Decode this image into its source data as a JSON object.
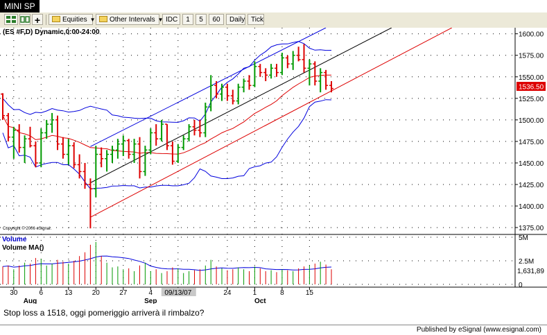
{
  "window": {
    "title": "MINI SP"
  },
  "toolbar": {
    "equities": "Equities",
    "other_intervals": "Other Intervals",
    "idc": "IDC",
    "one": "1",
    "five": "5",
    "sixty": "60",
    "daily": "Daily",
    "tick": "Tick"
  },
  "chart_header": "(ES #F,D) Dynamic,0:00-24:00",
  "copyright": "Copyright © 2006 eSignal.",
  "last_price": "1536.50",
  "volume_label": "Volume",
  "volume_ma_label": "Volume MA()",
  "volume_last": "1,631,89",
  "note": "Stop loss a 1518, oggi pomeriggio arriverà il rimbalzo?",
  "footer": "Published by eSignal (www.esignal.com)",
  "colors": {
    "up": "#009900",
    "down": "#dd0000",
    "band": "#0000dd",
    "ma": "#dd0000",
    "trend": "#000000",
    "price_tag": "#dd0000"
  },
  "chart_data": {
    "type": "ohlc",
    "price_axis": [
      "1600.00",
      "1575.00",
      "1550.00",
      "1525.00",
      "1500.00",
      "1475.00",
      "1450.00",
      "1425.00",
      "1400.00",
      "1375.00"
    ],
    "volume_axis": [
      "5M",
      "2.5M",
      "0"
    ],
    "x_ticks": [
      "30",
      "6",
      "13",
      "20",
      "27",
      "4",
      "09/13/07",
      "24",
      "1",
      "8",
      "15"
    ],
    "months": [
      "Aug",
      "Sep",
      "Oct"
    ],
    "ylim": [
      1367,
      1607
    ],
    "bars": [
      {
        "o": 1530,
        "h": 1531,
        "l": 1500,
        "c": 1505,
        "v": 1.9
      },
      {
        "o": 1505,
        "h": 1508,
        "l": 1475,
        "c": 1480,
        "v": 2.0
      },
      {
        "o": 1480,
        "h": 1492,
        "l": 1455,
        "c": 1488,
        "v": 1.6
      },
      {
        "o": 1488,
        "h": 1495,
        "l": 1462,
        "c": 1468,
        "v": 2.0
      },
      {
        "o": 1468,
        "h": 1482,
        "l": 1450,
        "c": 1478,
        "v": 2.3
      },
      {
        "o": 1478,
        "h": 1492,
        "l": 1468,
        "c": 1470,
        "v": 2.2
      },
      {
        "o": 1470,
        "h": 1475,
        "l": 1445,
        "c": 1450,
        "v": 2.8
      },
      {
        "o": 1450,
        "h": 1490,
        "l": 1445,
        "c": 1485,
        "v": 2.7
      },
      {
        "o": 1485,
        "h": 1500,
        "l": 1478,
        "c": 1495,
        "v": 2.0
      },
      {
        "o": 1495,
        "h": 1508,
        "l": 1485,
        "c": 1500,
        "v": 2.2
      },
      {
        "o": 1500,
        "h": 1505,
        "l": 1465,
        "c": 1472,
        "v": 2.6
      },
      {
        "o": 1472,
        "h": 1480,
        "l": 1455,
        "c": 1460,
        "v": 2.4
      },
      {
        "o": 1460,
        "h": 1478,
        "l": 1448,
        "c": 1470,
        "v": 2.2
      },
      {
        "o": 1470,
        "h": 1474,
        "l": 1444,
        "c": 1448,
        "v": 2.5
      },
      {
        "o": 1448,
        "h": 1460,
        "l": 1432,
        "c": 1440,
        "v": 3.0
      },
      {
        "o": 1440,
        "h": 1450,
        "l": 1420,
        "c": 1425,
        "v": 3.4
      },
      {
        "o": 1425,
        "h": 1432,
        "l": 1374,
        "c": 1420,
        "v": 4.2
      },
      {
        "o": 1420,
        "h": 1470,
        "l": 1410,
        "c": 1460,
        "v": 4.5
      },
      {
        "o": 1460,
        "h": 1468,
        "l": 1445,
        "c": 1455,
        "v": 3.0
      },
      {
        "o": 1455,
        "h": 1465,
        "l": 1440,
        "c": 1460,
        "v": 2.3
      },
      {
        "o": 1460,
        "h": 1470,
        "l": 1450,
        "c": 1465,
        "v": 1.8
      },
      {
        "o": 1465,
        "h": 1478,
        "l": 1455,
        "c": 1472,
        "v": 1.9
      },
      {
        "o": 1472,
        "h": 1482,
        "l": 1458,
        "c": 1476,
        "v": 1.6
      },
      {
        "o": 1476,
        "h": 1478,
        "l": 1455,
        "c": 1460,
        "v": 1.7
      },
      {
        "o": 1460,
        "h": 1478,
        "l": 1450,
        "c": 1472,
        "v": 1.4
      },
      {
        "o": 1472,
        "h": 1480,
        "l": 1432,
        "c": 1440,
        "v": 2.0
      },
      {
        "o": 1440,
        "h": 1470,
        "l": 1435,
        "c": 1465,
        "v": 2.3
      },
      {
        "o": 1465,
        "h": 1490,
        "l": 1460,
        "c": 1485,
        "v": 1.4
      },
      {
        "o": 1485,
        "h": 1495,
        "l": 1470,
        "c": 1478,
        "v": 1.6
      },
      {
        "o": 1478,
        "h": 1500,
        "l": 1475,
        "c": 1495,
        "v": 1.2
      },
      {
        "o": 1495,
        "h": 1495,
        "l": 1465,
        "c": 1470,
        "v": 1.4
      },
      {
        "o": 1470,
        "h": 1475,
        "l": 1448,
        "c": 1452,
        "v": 1.8
      },
      {
        "o": 1452,
        "h": 1472,
        "l": 1450,
        "c": 1468,
        "v": 1.7
      },
      {
        "o": 1468,
        "h": 1482,
        "l": 1465,
        "c": 1478,
        "v": 1.2
      },
      {
        "o": 1478,
        "h": 1495,
        "l": 1475,
        "c": 1492,
        "v": 1.4
      },
      {
        "o": 1492,
        "h": 1500,
        "l": 1482,
        "c": 1488,
        "v": 1.5
      },
      {
        "o": 1488,
        "h": 1500,
        "l": 1480,
        "c": 1485,
        "v": 1.6
      },
      {
        "o": 1485,
        "h": 1520,
        "l": 1480,
        "c": 1515,
        "v": 2.0
      },
      {
        "o": 1515,
        "h": 1552,
        "l": 1510,
        "c": 1540,
        "v": 2.6
      },
      {
        "o": 1540,
        "h": 1545,
        "l": 1525,
        "c": 1530,
        "v": 1.9
      },
      {
        "o": 1530,
        "h": 1542,
        "l": 1522,
        "c": 1538,
        "v": 1.7
      },
      {
        "o": 1538,
        "h": 1542,
        "l": 1522,
        "c": 1528,
        "v": 1.5
      },
      {
        "o": 1528,
        "h": 1535,
        "l": 1518,
        "c": 1522,
        "v": 1.6
      },
      {
        "o": 1522,
        "h": 1542,
        "l": 1518,
        "c": 1538,
        "v": 1.8
      },
      {
        "o": 1538,
        "h": 1548,
        "l": 1532,
        "c": 1545,
        "v": 1.6
      },
      {
        "o": 1545,
        "h": 1552,
        "l": 1535,
        "c": 1540,
        "v": 1.4
      },
      {
        "o": 1540,
        "h": 1568,
        "l": 1538,
        "c": 1562,
        "v": 1.9
      },
      {
        "o": 1562,
        "h": 1565,
        "l": 1550,
        "c": 1555,
        "v": 1.7
      },
      {
        "o": 1555,
        "h": 1560,
        "l": 1545,
        "c": 1552,
        "v": 1.4
      },
      {
        "o": 1552,
        "h": 1565,
        "l": 1548,
        "c": 1560,
        "v": 1.5
      },
      {
        "o": 1560,
        "h": 1565,
        "l": 1550,
        "c": 1555,
        "v": 1.3
      },
      {
        "o": 1555,
        "h": 1578,
        "l": 1552,
        "c": 1572,
        "v": 1.6
      },
      {
        "o": 1572,
        "h": 1575,
        "l": 1560,
        "c": 1565,
        "v": 1.5
      },
      {
        "o": 1565,
        "h": 1580,
        "l": 1558,
        "c": 1575,
        "v": 1.4
      },
      {
        "o": 1575,
        "h": 1585,
        "l": 1568,
        "c": 1570,
        "v": 1.7
      },
      {
        "o": 1570,
        "h": 1588,
        "l": 1555,
        "c": 1560,
        "v": 1.9
      },
      {
        "o": 1560,
        "h": 1570,
        "l": 1540,
        "c": 1565,
        "v": 2.0
      },
      {
        "o": 1565,
        "h": 1568,
        "l": 1540,
        "c": 1545,
        "v": 2.2
      },
      {
        "o": 1545,
        "h": 1560,
        "l": 1532,
        "c": 1555,
        "v": 2.4
      },
      {
        "o": 1555,
        "h": 1558,
        "l": 1535,
        "c": 1540,
        "v": 2.1
      },
      {
        "o": 1540,
        "h": 1545,
        "l": 1532,
        "c": 1536.5,
        "v": 1.6
      }
    ]
  }
}
